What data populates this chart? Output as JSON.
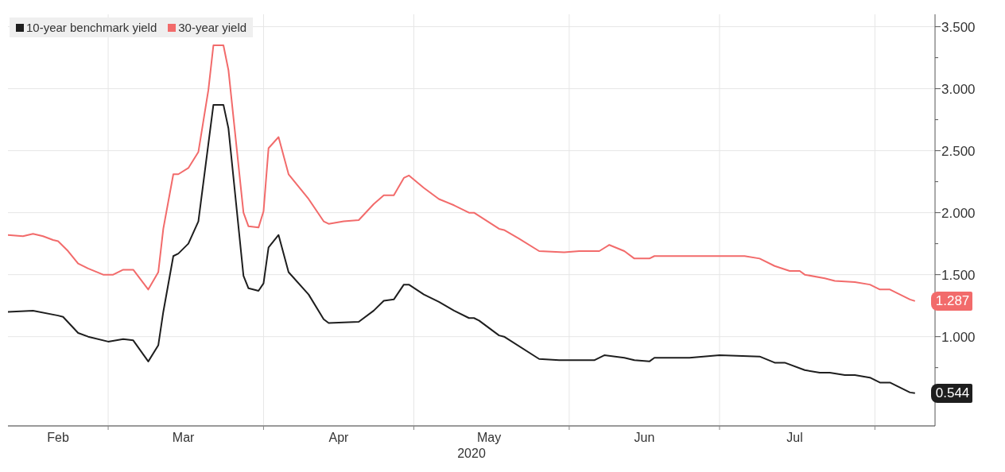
{
  "chart_data": {
    "type": "line",
    "xlabel": "2020",
    "legend": "top left",
    "grid": true,
    "xlim": [
      "2020-02-10",
      "2020-08-13"
    ],
    "ylim": [
      0.28,
      3.6
    ],
    "xticks": [
      {
        "value": "2020-02-20",
        "label": "Feb"
      },
      {
        "value": "2020-03-01",
        "label": null
      },
      {
        "value": "2020-03-16",
        "label": "Mar"
      },
      {
        "value": "2020-04-01",
        "label": null
      },
      {
        "value": "2020-04-16",
        "label": "Apr"
      },
      {
        "value": "2020-05-01",
        "label": null
      },
      {
        "value": "2020-05-16",
        "label": "May"
      },
      {
        "value": "2020-06-01",
        "label": null
      },
      {
        "value": "2020-06-16",
        "label": "Jun"
      },
      {
        "value": "2020-07-01",
        "label": null
      },
      {
        "value": "2020-07-16",
        "label": "Jul"
      },
      {
        "value": "2020-08-01",
        "label": null
      }
    ],
    "yticks": [
      {
        "value": 0.5,
        "label": null
      },
      {
        "value": 0.75,
        "label": null
      },
      {
        "value": 1,
        "label": "1.000"
      },
      {
        "value": 1.25,
        "label": null
      },
      {
        "value": 1.5,
        "label": "1.500"
      },
      {
        "value": 1.75,
        "label": null
      },
      {
        "value": 2,
        "label": "2.000"
      },
      {
        "value": 2.25,
        "label": null
      },
      {
        "value": 2.5,
        "label": "2.500"
      },
      {
        "value": 2.75,
        "label": null
      },
      {
        "value": 3,
        "label": "3.000"
      },
      {
        "value": 3.25,
        "label": null
      },
      {
        "value": 3.5,
        "label": "3.500"
      }
    ],
    "annotations": [
      {
        "text": "0.544",
        "x": "2020-08-09",
        "y": 0.544
      },
      {
        "text": "1.287",
        "x": "2020-08-09",
        "y": 1.287
      }
    ],
    "series": [
      {
        "name": "10-year benchmark yield",
        "color": "#1e1e1e",
        "x": [
          "2020-02-10",
          "2020-02-15",
          "2020-02-20",
          "2020-02-21",
          "2020-02-24",
          "2020-02-26",
          "2020-03-01",
          "2020-03-04",
          "2020-03-06",
          "2020-03-09",
          "2020-03-11",
          "2020-03-12",
          "2020-03-14",
          "2020-03-15",
          "2020-03-17",
          "2020-03-19",
          "2020-03-22",
          "2020-03-24",
          "2020-03-25",
          "2020-03-28",
          "2020-03-29",
          "2020-03-31",
          "2020-04-01",
          "2020-04-02",
          "2020-04-04",
          "2020-04-06",
          "2020-04-10",
          "2020-04-13",
          "2020-04-14",
          "2020-04-20",
          "2020-04-23",
          "2020-04-25",
          "2020-04-27",
          "2020-04-29",
          "2020-04-30",
          "2020-05-03",
          "2020-05-06",
          "2020-05-09",
          "2020-05-12",
          "2020-05-13",
          "2020-05-14",
          "2020-05-18",
          "2020-05-19",
          "2020-05-26",
          "2020-05-30",
          "2020-06-06",
          "2020-06-08",
          "2020-06-12",
          "2020-06-14",
          "2020-06-17",
          "2020-06-18",
          "2020-06-25",
          "2020-07-01",
          "2020-07-09",
          "2020-07-12",
          "2020-07-14",
          "2020-07-18",
          "2020-07-21",
          "2020-07-23",
          "2020-07-26",
          "2020-07-28",
          "2020-07-31",
          "2020-08-02",
          "2020-08-04",
          "2020-08-06",
          "2020-08-08",
          "2020-08-09"
        ],
        "values": [
          1.2,
          1.21,
          1.17,
          1.16,
          1.03,
          1.0,
          0.96,
          0.98,
          0.97,
          0.8,
          0.93,
          1.2,
          1.65,
          1.67,
          1.75,
          1.93,
          2.87,
          2.87,
          2.68,
          1.49,
          1.39,
          1.37,
          1.43,
          1.72,
          1.82,
          1.52,
          1.34,
          1.14,
          1.11,
          1.12,
          1.21,
          1.29,
          1.3,
          1.42,
          1.42,
          1.34,
          1.28,
          1.21,
          1.15,
          1.15,
          1.13,
          1.01,
          1.0,
          0.82,
          0.81,
          0.81,
          0.85,
          0.83,
          0.81,
          0.8,
          0.83,
          0.83,
          0.85,
          0.84,
          0.79,
          0.79,
          0.73,
          0.71,
          0.71,
          0.69,
          0.69,
          0.67,
          0.63,
          0.63,
          0.59,
          0.55,
          0.544
        ]
      },
      {
        "name": "30-year yield",
        "color": "#f26b6b",
        "x": [
          "2020-02-10",
          "2020-02-13",
          "2020-02-15",
          "2020-02-17",
          "2020-02-19",
          "2020-02-20",
          "2020-02-22",
          "2020-02-24",
          "2020-02-26",
          "2020-02-29",
          "2020-03-02",
          "2020-03-04",
          "2020-03-06",
          "2020-03-09",
          "2020-03-11",
          "2020-03-12",
          "2020-03-14",
          "2020-03-15",
          "2020-03-17",
          "2020-03-19",
          "2020-03-21",
          "2020-03-22",
          "2020-03-24",
          "2020-03-25",
          "2020-03-28",
          "2020-03-29",
          "2020-03-31",
          "2020-04-01",
          "2020-04-02",
          "2020-04-04",
          "2020-04-06",
          "2020-04-10",
          "2020-04-13",
          "2020-04-14",
          "2020-04-17",
          "2020-04-20",
          "2020-04-23",
          "2020-04-25",
          "2020-04-27",
          "2020-04-29",
          "2020-04-30",
          "2020-05-03",
          "2020-05-06",
          "2020-05-09",
          "2020-05-12",
          "2020-05-13",
          "2020-05-18",
          "2020-05-19",
          "2020-05-22",
          "2020-05-26",
          "2020-05-31",
          "2020-06-03",
          "2020-06-07",
          "2020-06-09",
          "2020-06-12",
          "2020-06-14",
          "2020-06-17",
          "2020-06-18",
          "2020-06-26",
          "2020-07-06",
          "2020-07-09",
          "2020-07-12",
          "2020-07-15",
          "2020-07-17",
          "2020-07-18",
          "2020-07-22",
          "2020-07-24",
          "2020-07-28",
          "2020-07-31",
          "2020-08-02",
          "2020-08-04",
          "2020-08-06",
          "2020-08-08",
          "2020-08-09"
        ],
        "values": [
          1.82,
          1.81,
          1.83,
          1.81,
          1.78,
          1.77,
          1.69,
          1.59,
          1.55,
          1.5,
          1.5,
          1.54,
          1.54,
          1.38,
          1.52,
          1.87,
          2.31,
          2.31,
          2.36,
          2.49,
          2.99,
          3.35,
          3.35,
          3.15,
          2.0,
          1.89,
          1.88,
          2.01,
          2.52,
          2.61,
          2.31,
          2.11,
          1.93,
          1.91,
          1.93,
          1.94,
          2.07,
          2.14,
          2.14,
          2.28,
          2.3,
          2.2,
          2.11,
          2.06,
          2.0,
          2.0,
          1.87,
          1.86,
          1.79,
          1.69,
          1.68,
          1.69,
          1.69,
          1.74,
          1.69,
          1.63,
          1.63,
          1.65,
          1.65,
          1.65,
          1.63,
          1.57,
          1.53,
          1.53,
          1.5,
          1.47,
          1.45,
          1.44,
          1.42,
          1.38,
          1.38,
          1.34,
          1.3,
          1.287
        ]
      }
    ]
  }
}
